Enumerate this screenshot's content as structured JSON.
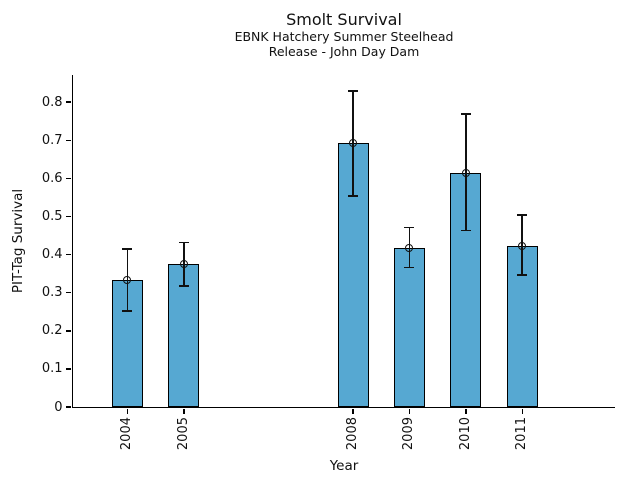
{
  "chart_data": {
    "type": "bar",
    "title": "Smolt Survival",
    "subtitle_lines": [
      "EBNK Hatchery Summer Steelhead",
      "Release - John Day Dam"
    ],
    "xlabel": "Year",
    "ylabel": "PIT-Tag Survival",
    "categories": [
      "2004",
      "2005",
      "2008",
      "2009",
      "2010",
      "2011"
    ],
    "x_years": [
      2004,
      2005,
      2008,
      2009,
      2010,
      2011
    ],
    "series": [
      {
        "name": "PIT-Tag Survival",
        "values": [
          0.333,
          0.375,
          0.692,
          0.417,
          0.615,
          0.423
        ],
        "error_low": [
          0.252,
          0.317,
          0.554,
          0.366,
          0.463,
          0.347
        ],
        "error_high": [
          0.415,
          0.432,
          0.829,
          0.471,
          0.769,
          0.504
        ]
      }
    ],
    "yticks": {
      "values": [
        0,
        0.1,
        0.2,
        0.3,
        0.4,
        0.5,
        0.6,
        0.7,
        0.8
      ],
      "labels": [
        "0",
        "0.1",
        "0.2",
        "0.3",
        "0.4",
        "0.5",
        "0.6",
        "0.7",
        "0.8"
      ]
    },
    "ylim": [
      0,
      0.8715
    ],
    "xlim": [
      2003.025,
      2012.635
    ],
    "bar_width_years": 0.55,
    "grid": false,
    "legend_position": "none",
    "colors": {
      "bar_fill": "#56A8D2",
      "bar_edge": "#000000",
      "error_bar": "#111111",
      "text": "#111111",
      "background": "#ffffff"
    }
  }
}
